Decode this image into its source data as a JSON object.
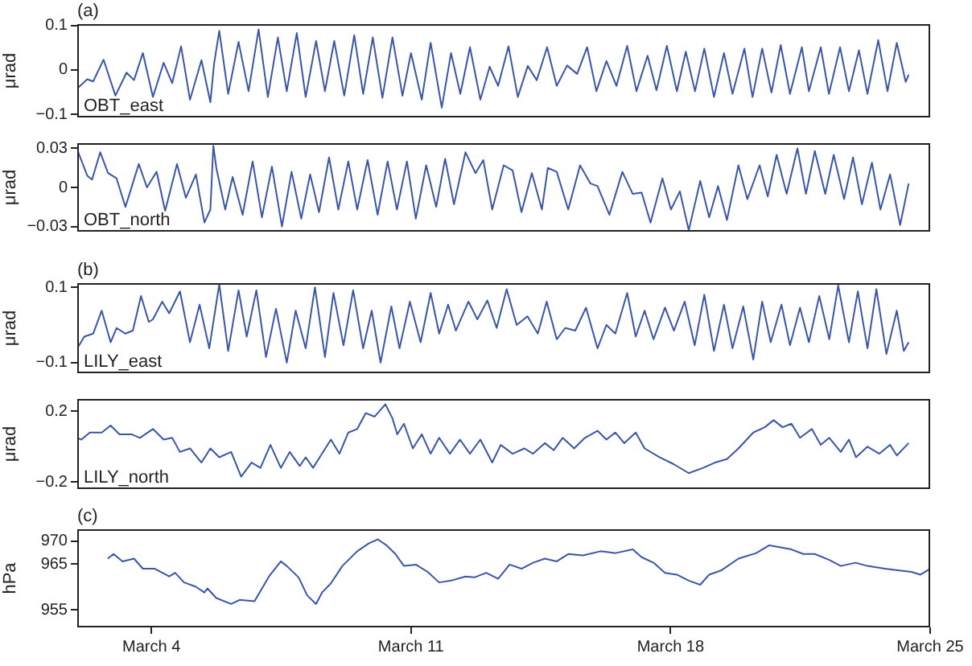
{
  "chart_data": [
    {
      "type": "line",
      "title": "(a)",
      "ylabel": "μrad",
      "tick_labels": "y",
      "xlim": [
        "--03-02",
        "--03-25"
      ],
      "ylim": [
        -0.107,
        0.103
      ],
      "yticks": [
        {
          "value": -0.1,
          "label": "−0.1"
        },
        0,
        0.1
      ],
      "x": [
        "--03-02T00:00",
        "--03-02T06:29",
        "--03-02T10:19",
        "--03-02T17:02",
        "--03-03T00:43",
        "--03-03T07:55",
        "--03-03T12:43",
        "--03-03T18:29",
        "--03-04T00:58",
        "--03-04T07:55",
        "--03-04T13:26",
        "--03-04T19:12",
        "--03-05T00:58",
        "--03-05T08:24",
        "--03-05T14:10",
        "--03-05T16:34",
        "--03-05T19:55",
        "--03-06T01:41",
        "--03-06T08:24",
        "--03-06T14:53",
        "--03-06T21:22",
        "--03-07T03:22",
        "--03-07T09:50",
        "--03-07T15:36",
        "--03-07T22:05",
        "--03-08T03:50",
        "--03-08T10:34",
        "--03-08T16:19",
        "--03-08T22:19",
        "--03-09T04:48",
        "--03-09T11:17",
        "--03-09T17:02",
        "--03-09T23:17",
        "--03-10T05:31",
        "--03-10T12:00",
        "--03-10T18:29",
        "--03-11T00:00",
        "--03-11T06:58",
        "--03-11T12:43",
        "--03-11T19:55",
        "--03-12T01:55",
        "--03-12T07:55",
        "--03-12T14:10",
        "--03-12T20:53",
        "--03-13T02:53",
        "--03-13T08:24",
        "--03-13T15:07",
        "--03-13T21:07",
        "--03-14T03:36",
        "--03-14T09:22",
        "--03-14T16:05",
        "--03-14T22:19",
        "--03-15T05:02",
        "--03-15T11:31",
        "--03-15T18:00",
        "--03-16T00:00",
        "--03-16T06:29",
        "--03-16T12:58",
        "--03-16T19:55",
        "--03-17T01:55",
        "--03-17T09:07",
        "--03-17T14:53",
        "--03-17T21:36",
        "--03-18T04:05",
        "--03-18T09:50",
        "--03-18T15:50",
        "--03-18T21:50",
        "--03-19T04:05",
        "--03-19T10:34",
        "--03-19T16:05",
        "--03-19T23:46",
        "--03-20T05:02",
        "--03-20T11:17",
        "--03-20T17:17",
        "--03-20T23:17",
        "--03-21T05:17",
        "--03-21T12:58",
        "--03-21T17:31",
        "--03-22T01:12",
        "--03-22T06:29",
        "--03-22T13:41",
        "--03-22T19:26",
        "--03-23T01:55",
        "--03-23T07:26",
        "--03-23T14:24",
        "--03-23T20:24",
        "--03-24T02:24",
        "--03-24T08:10",
        "--03-24T10:05"
      ],
      "series": [
        {
          "name": "OBT_east",
          "color": "#3a56a8",
          "values": [
            -0.042,
            -0.021,
            -0.026,
            0.023,
            -0.058,
            -0.006,
            -0.023,
            0.038,
            -0.061,
            0.016,
            -0.03,
            0.053,
            -0.067,
            0.022,
            -0.073,
            0.014,
            0.088,
            -0.054,
            0.063,
            -0.048,
            0.091,
            -0.061,
            0.073,
            -0.048,
            0.083,
            -0.061,
            0.065,
            -0.048,
            0.065,
            -0.058,
            0.078,
            -0.054,
            0.073,
            -0.063,
            0.073,
            -0.058,
            0.038,
            -0.067,
            0.061,
            -0.085,
            0.038,
            -0.054,
            0.051,
            -0.067,
            0.007,
            -0.036,
            0.053,
            -0.061,
            0.009,
            -0.023,
            0.051,
            -0.036,
            0.01,
            -0.009,
            0.051,
            -0.048,
            0.02,
            -0.036,
            0.054,
            -0.048,
            0.032,
            -0.046,
            0.054,
            -0.048,
            0.041,
            -0.048,
            0.048,
            -0.061,
            0.038,
            -0.054,
            0.048,
            -0.061,
            0.048,
            -0.051,
            0.056,
            -0.054,
            0.051,
            -0.048,
            0.051,
            -0.054,
            0.051,
            -0.048,
            0.044,
            -0.054,
            0.067,
            -0.048,
            0.061,
            -0.027,
            -0.011
          ]
        }
      ]
    },
    {
      "type": "line",
      "ylabel": "μrad",
      "tick_labels": "y",
      "xlim": [
        "--03-02",
        "--03-25"
      ],
      "ylim": [
        -0.034,
        0.034
      ],
      "yticks": [
        {
          "value": -0.03,
          "label": "−0.03"
        },
        0,
        0.03
      ],
      "x": [
        "--03-02T00:00",
        "--03-02T06:29",
        "--03-02T09:36",
        "--03-02T14:53",
        "--03-02T19:55",
        "--03-03T01:26",
        "--03-03T07:12",
        "--03-03T15:50",
        "--03-03T21:07",
        "--03-04T03:22",
        "--03-04T08:53",
        "--03-04T16:34",
        "--03-04T22:19",
        "--03-05T04:48",
        "--03-05T10:19",
        "--03-05T14:10",
        "--03-05T16:05",
        "--03-05T18:00",
        "--03-05T23:46",
        "--03-06T04:34",
        "--03-06T11:02",
        "--03-06T17:31",
        "--03-06T23:31",
        "--03-07T06:00",
        "--03-07T12:29",
        "--03-07T18:43",
        "--03-08T00:58",
        "--03-08T06:43",
        "--03-08T12:29",
        "--03-08T18:58",
        "--03-09T00:58",
        "--03-09T07:26",
        "--03-09T13:12",
        "--03-09T19:55",
        "--03-10T02:24",
        "--03-10T08:53",
        "--03-10T14:53",
        "--03-10T21:22",
        "--03-11T03:07",
        "--03-11T09:50",
        "--03-11T16:19",
        "--03-11T22:05",
        "--03-12T03:50",
        "--03-12T11:17",
        "--03-12T17:46",
        "--03-12T22:48",
        "--03-13T04:34",
        "--03-13T12:00",
        "--03-13T17:46",
        "--03-13T23:31",
        "--03-14T06:14",
        "--03-14T12:43",
        "--03-14T16:34",
        "--03-14T22:19",
        "--03-15T05:46",
        "--03-15T13:26",
        "--03-15T20:10",
        "--03-16T00:43",
        "--03-16T08:24",
        "--03-16T16:48",
        "--03-16T23:31",
        "--03-17T05:17",
        "--03-17T11:02",
        "--03-17T18:43",
        "--03-18T00:14",
        "--03-18T06:00",
        "--03-18T11:46",
        "--03-18T19:12",
        "--03-19T00:58",
        "--03-19T06:43",
        "--03-19T12:29",
        "--03-19T19:55",
        "--03-20T01:41",
        "--03-20T09:36",
        "--03-20T14:53",
        "--03-20T20:38",
        "--03-21T03:07",
        "--03-21T10:05",
        "--03-21T15:36",
        "--03-21T21:22",
        "--03-22T04:05",
        "--03-22T09:36",
        "--03-22T16:19",
        "--03-22T22:05",
        "--03-23T03:50",
        "--03-23T10:19",
        "--03-23T15:50",
        "--03-23T22:05",
        "--03-24T04:34",
        "--03-24T10:05"
      ],
      "series": [
        {
          "name": "OBT_north",
          "color": "#3a56a8",
          "values": [
            0.029,
            0.009,
            0.006,
            0.027,
            0.011,
            0.007,
            -0.015,
            0.018,
            0.0,
            0.012,
            -0.018,
            0.018,
            -0.008,
            0.01,
            -0.027,
            -0.017,
            0.032,
            0.015,
            -0.017,
            0.008,
            -0.021,
            0.02,
            -0.023,
            0.016,
            -0.03,
            0.012,
            -0.024,
            0.01,
            -0.019,
            0.023,
            -0.017,
            0.02,
            -0.017,
            0.021,
            -0.021,
            0.02,
            -0.017,
            0.02,
            -0.024,
            0.017,
            -0.015,
            0.022,
            -0.013,
            0.027,
            0.011,
            0.021,
            -0.017,
            0.017,
            0.013,
            -0.019,
            0.011,
            -0.017,
            0.015,
            0.012,
            -0.017,
            0.017,
            0.003,
            0.001,
            -0.021,
            0.012,
            -0.005,
            -0.004,
            -0.027,
            0.007,
            -0.017,
            -0.003,
            -0.033,
            0.005,
            -0.023,
            0.001,
            -0.025,
            0.017,
            -0.009,
            0.017,
            -0.007,
            0.025,
            -0.005,
            0.03,
            -0.005,
            0.028,
            -0.005,
            0.025,
            -0.009,
            0.023,
            -0.013,
            0.019,
            -0.017,
            0.01,
            -0.029,
            0.003
          ]
        }
      ]
    },
    {
      "type": "line",
      "title": "(b)",
      "ylabel": "μrad",
      "tick_labels": "y",
      "xlim": [
        "--03-02",
        "--03-25"
      ],
      "ylim": [
        -0.128,
        0.111
      ],
      "yticks": [
        {
          "value": -0.1,
          "label": "−0.1"
        },
        0.1
      ],
      "x": [
        "--03-02T00:00",
        "--03-02T04:34",
        "--03-02T10:19",
        "--03-02T15:50",
        "--03-02T21:36",
        "--03-03T01:26",
        "--03-03T07:12",
        "--03-03T12:00",
        "--03-03T17:17",
        "--03-03T22:19",
        "--03-04T00:58",
        "--03-04T06:58",
        "--03-04T11:31",
        "--03-04T18:29",
        "--03-05T00:58",
        "--03-05T07:12",
        "--03-05T13:26",
        "--03-05T19:55",
        "--03-06T01:41",
        "--03-06T08:24",
        "--03-06T13:41",
        "--03-06T19:55",
        "--03-07T02:10",
        "--03-07T08:38",
        "--03-07T15:36",
        "--03-07T21:22",
        "--03-08T03:50",
        "--03-08T09:50",
        "--03-08T16:19",
        "--03-08T21:50",
        "--03-09T04:19",
        "--03-09T10:34",
        "--03-09T17:02",
        "--03-09T22:34",
        "--03-10T04:19",
        "--03-10T11:17",
        "--03-10T16:34",
        "--03-10T23:17",
        "--03-11T06:14",
        "--03-11T12:43",
        "--03-11T18:14",
        "--03-12T00:00",
        "--03-12T05:02",
        "--03-12T13:12",
        "--03-12T18:58",
        "--03-13T01:26",
        "--03-13T07:26",
        "--03-13T13:55",
        "--03-13T20:24",
        "--03-14T03:22",
        "--03-14T10:05",
        "--03-14T15:50",
        "--03-14T22:19",
        "--03-15T03:50",
        "--03-15T10:19",
        "--03-15T17:17",
        "--03-16T00:43",
        "--03-16T06:29",
        "--03-16T12:14",
        "--03-16T19:55",
        "--03-17T01:26",
        "--03-17T07:12",
        "--03-17T12:58",
        "--03-17T20:24",
        "--03-18T02:10",
        "--03-18T09:07",
        "--03-18T15:36",
        "--03-18T21:50",
        "--03-19T04:05",
        "--03-19T10:34",
        "--03-19T16:05",
        "--03-19T23:02",
        "--03-20T05:31",
        "--03-20T11:17",
        "--03-20T16:48",
        "--03-20T23:46",
        "--03-21T05:17",
        "--03-21T11:46",
        "--03-21T17:31",
        "--03-22T00:14",
        "--03-22T06:43",
        "--03-22T12:29",
        "--03-22T19:26",
        "--03-23T01:12",
        "--03-23T07:26",
        "--03-23T13:12",
        "--03-23T19:41",
        "--03-24T02:24",
        "--03-24T06:58",
        "--03-24T10:05"
      ],
      "series": [
        {
          "name": "LILY_east",
          "color": "#3a56a8",
          "values": [
            -0.062,
            -0.031,
            -0.023,
            0.038,
            -0.046,
            -0.008,
            -0.023,
            -0.015,
            0.077,
            0.008,
            0.015,
            0.062,
            0.031,
            0.089,
            -0.046,
            0.054,
            -0.062,
            0.108,
            -0.069,
            0.092,
            -0.031,
            0.092,
            -0.085,
            0.043,
            -0.1,
            0.038,
            -0.062,
            0.1,
            -0.085,
            0.085,
            -0.054,
            0.092,
            -0.062,
            0.038,
            -0.1,
            0.049,
            -0.062,
            0.062,
            -0.046,
            0.085,
            -0.023,
            0.054,
            -0.015,
            0.062,
            0.015,
            0.065,
            -0.008,
            0.095,
            0.0,
            0.023,
            -0.023,
            0.062,
            -0.038,
            -0.008,
            -0.015,
            0.046,
            -0.062,
            0.0,
            -0.023,
            0.085,
            -0.031,
            0.038,
            -0.038,
            0.046,
            -0.015,
            0.062,
            -0.054,
            0.08,
            -0.069,
            0.054,
            -0.062,
            0.049,
            -0.092,
            0.062,
            -0.046,
            0.054,
            -0.054,
            0.046,
            -0.046,
            0.077,
            -0.038,
            0.105,
            -0.046,
            0.089,
            -0.062,
            0.095,
            -0.077,
            0.038,
            -0.069,
            -0.046
          ]
        }
      ]
    },
    {
      "type": "line",
      "ylabel": "μrad",
      "tick_labels": "y",
      "xlim": [
        "--03-02",
        "--03-25"
      ],
      "ylim": [
        -0.24,
        0.27
      ],
      "yticks": [
        {
          "value": -0.2,
          "label": "−0.2"
        },
        0.2
      ],
      "x": [
        "--03-02T00:00",
        "--03-02T02:38",
        "--03-02T08:10",
        "--03-02T15:50",
        "--03-02T21:36",
        "--03-03T03:22",
        "--03-03T11:02",
        "--03-03T16:34",
        "--03-04T00:58",
        "--03-04T07:55",
        "--03-04T13:26",
        "--03-04T18:29",
        "--03-05T00:58",
        "--03-05T08:24",
        "--03-05T14:10",
        "--03-05T19:55",
        "--03-06T03:36",
        "--03-06T10:05",
        "--03-06T16:48",
        "--03-06T22:34",
        "--03-07T05:02",
        "--03-07T11:46",
        "--03-07T17:31",
        "--03-08T00:00",
        "--03-08T03:50",
        "--03-08T08:38",
        "--03-08T14:24",
        "--03-08T20:10",
        "--03-09T01:41",
        "--03-09T07:26",
        "--03-09T13:12",
        "--03-09T18:43",
        "--03-10T00:29",
        "--03-10T07:26",
        "--03-10T12:00",
        "--03-10T15:07",
        "--03-10T19:26",
        "--03-11T01:12",
        "--03-11T06:58",
        "--03-11T12:43",
        "--03-11T18:14",
        "--03-12T01:12",
        "--03-12T07:41",
        "--03-12T14:10",
        "--03-12T20:53",
        "--03-13T04:34",
        "--03-13T10:05",
        "--03-13T17:46",
        "--03-14T01:26",
        "--03-14T06:58",
        "--03-14T14:38",
        "--03-14T20:24",
        "--03-15T02:10",
        "--03-15T09:36",
        "--03-15T16:34",
        "--03-16T00:43",
        "--03-16T06:29",
        "--03-16T12:14",
        "--03-16T18:00",
        "--03-17T01:26",
        "--03-17T07:12",
        "--03-17T16:48",
        "--03-18T02:10",
        "--03-18T11:46",
        "--03-18T21:07",
        "--03-19T04:48",
        "--03-19T12:29",
        "--03-19T19:55",
        "--03-20T05:31",
        "--03-20T12:58",
        "--03-20T18:43",
        "--03-21T00:29",
        "--03-21T06:14",
        "--03-21T11:46",
        "--03-21T19:26",
        "--03-22T01:12",
        "--03-22T06:43",
        "--03-22T14:10",
        "--03-22T19:26",
        "--03-23T00:00",
        "--03-23T07:26",
        "--03-23T15:07",
        "--03-23T22:05",
        "--03-24T02:24",
        "--03-24T10:05"
      ],
      "series": [
        {
          "name": "LILY_north",
          "color": "#3a56a8",
          "values": [
            0.05,
            0.04,
            0.08,
            0.08,
            0.12,
            0.07,
            0.07,
            0.05,
            0.1,
            0.04,
            0.05,
            -0.03,
            -0.01,
            -0.09,
            -0.01,
            -0.06,
            -0.03,
            -0.17,
            -0.09,
            -0.12,
            0.01,
            -0.12,
            -0.03,
            -0.11,
            -0.06,
            -0.12,
            -0.04,
            0.04,
            -0.04,
            0.08,
            0.1,
            0.19,
            0.17,
            0.24,
            0.16,
            0.07,
            0.13,
            -0.01,
            0.07,
            -0.04,
            0.05,
            -0.04,
            0.04,
            -0.04,
            0.04,
            -0.09,
            0.01,
            -0.04,
            -0.01,
            -0.04,
            0.02,
            -0.02,
            0.05,
            -0.01,
            0.05,
            0.09,
            0.04,
            0.08,
            0.02,
            0.08,
            -0.01,
            -0.06,
            -0.1,
            -0.15,
            -0.12,
            -0.09,
            -0.07,
            -0.01,
            0.08,
            0.11,
            0.15,
            0.11,
            0.13,
            0.05,
            0.1,
            0.01,
            0.05,
            -0.03,
            0.04,
            -0.06,
            0,
            -0.04,
            0.01,
            -0.05,
            0.02
          ]
        }
      ]
    },
    {
      "type": "line",
      "title": "(c)",
      "ylabel": "hPa",
      "xlim": [
        "--03-02",
        "--03-25"
      ],
      "xticks": [
        {
          "value": "--03-04",
          "label": "March 4"
        },
        {
          "value": "--03-11",
          "label": "March 11"
        },
        {
          "value": "--03-18",
          "label": "March 18"
        },
        {
          "value": "--03-25",
          "label": "March 25"
        }
      ],
      "ylim": [
        951.2,
        972.6
      ],
      "yticks": [
        955,
        965,
        970
      ],
      "x": [
        "--03-02T19:41",
        "--03-02T23:31",
        "--03-03T05:17",
        "--03-03T12:43",
        "--03-03T18:29",
        "--03-04T02:10",
        "--03-04T11:31",
        "--03-04T15:22",
        "--03-04T21:07",
        "--03-05T04:34",
        "--03-05T10:19",
        "--03-05T12:14",
        "--03-05T18:00",
        "--03-06T03:36",
        "--03-06T09:07",
        "--03-06T18:43",
        "--03-07T04:05",
        "--03-07T11:46",
        "--03-07T15:36",
        "--03-07T23:17",
        "--03-08T04:48",
        "--03-08T10:34",
        "--03-08T14:24",
        "--03-08T20:10",
        "--03-09T03:36",
        "--03-09T13:12",
        "--03-09T20:38",
        "--03-10T02:24",
        "--03-10T08:10",
        "--03-10T13:55",
        "--03-10T19:26",
        "--03-11T03:07",
        "--03-11T10:48",
        "--03-11T18:14",
        "--03-12T01:55",
        "--03-12T11:17",
        "--03-12T17:02",
        "--03-13T00:43",
        "--03-13T08:24",
        "--03-13T15:50",
        "--03-13T23:31",
        "--03-14T06:58",
        "--03-14T14:38",
        "--03-14T22:19",
        "--03-15T05:46",
        "--03-15T15:22",
        "--03-16T02:38",
        "--03-16T12:14",
        "--03-16T23:31",
        "--03-17T05:17",
        "--03-17T12:58",
        "--03-17T20:24",
        "--03-18T04:05",
        "--03-18T11:46",
        "--03-18T19:12",
        "--03-19T00:58",
        "--03-19T08:38",
        "--03-19T19:55",
        "--03-20T07:26",
        "--03-20T15:50",
        "--03-20T22:34",
        "--03-21T06:14",
        "--03-21T13:55",
        "--03-21T21:22",
        "--03-22T06:43",
        "--03-22T14:10",
        "--03-22T23:46",
        "--03-23T07:26",
        "--03-23T18:43",
        "--03-24T04:05",
        "--03-24T12:00",
        "--03-24T17:46",
        "--03-25T00:00"
      ],
      "series": [
        {
          "color": "#3a56a8",
          "values": [
            966.2,
            967.2,
            965.6,
            966.2,
            964.0,
            964.0,
            962.3,
            963.1,
            961.0,
            960.1,
            958.8,
            959.7,
            957.6,
            956.3,
            957.2,
            956.9,
            962.3,
            965.6,
            964.6,
            962.1,
            958.2,
            956.3,
            958.8,
            960.8,
            964.6,
            967.8,
            969.5,
            970.4,
            969.1,
            967.2,
            964.6,
            964.9,
            963.3,
            961.0,
            961.4,
            962.3,
            962.1,
            963.1,
            961.8,
            964.9,
            964.0,
            965.3,
            966.2,
            965.6,
            967.2,
            966.9,
            967.8,
            967.4,
            968.2,
            966.5,
            965.3,
            963.1,
            962.7,
            961.4,
            960.5,
            962.7,
            963.6,
            966.2,
            967.4,
            969.1,
            968.7,
            968.2,
            967.2,
            967.2,
            965.9,
            964.6,
            965.3,
            964.6,
            964.0,
            963.6,
            963.3,
            962.7,
            964.0
          ]
        }
      ]
    }
  ]
}
